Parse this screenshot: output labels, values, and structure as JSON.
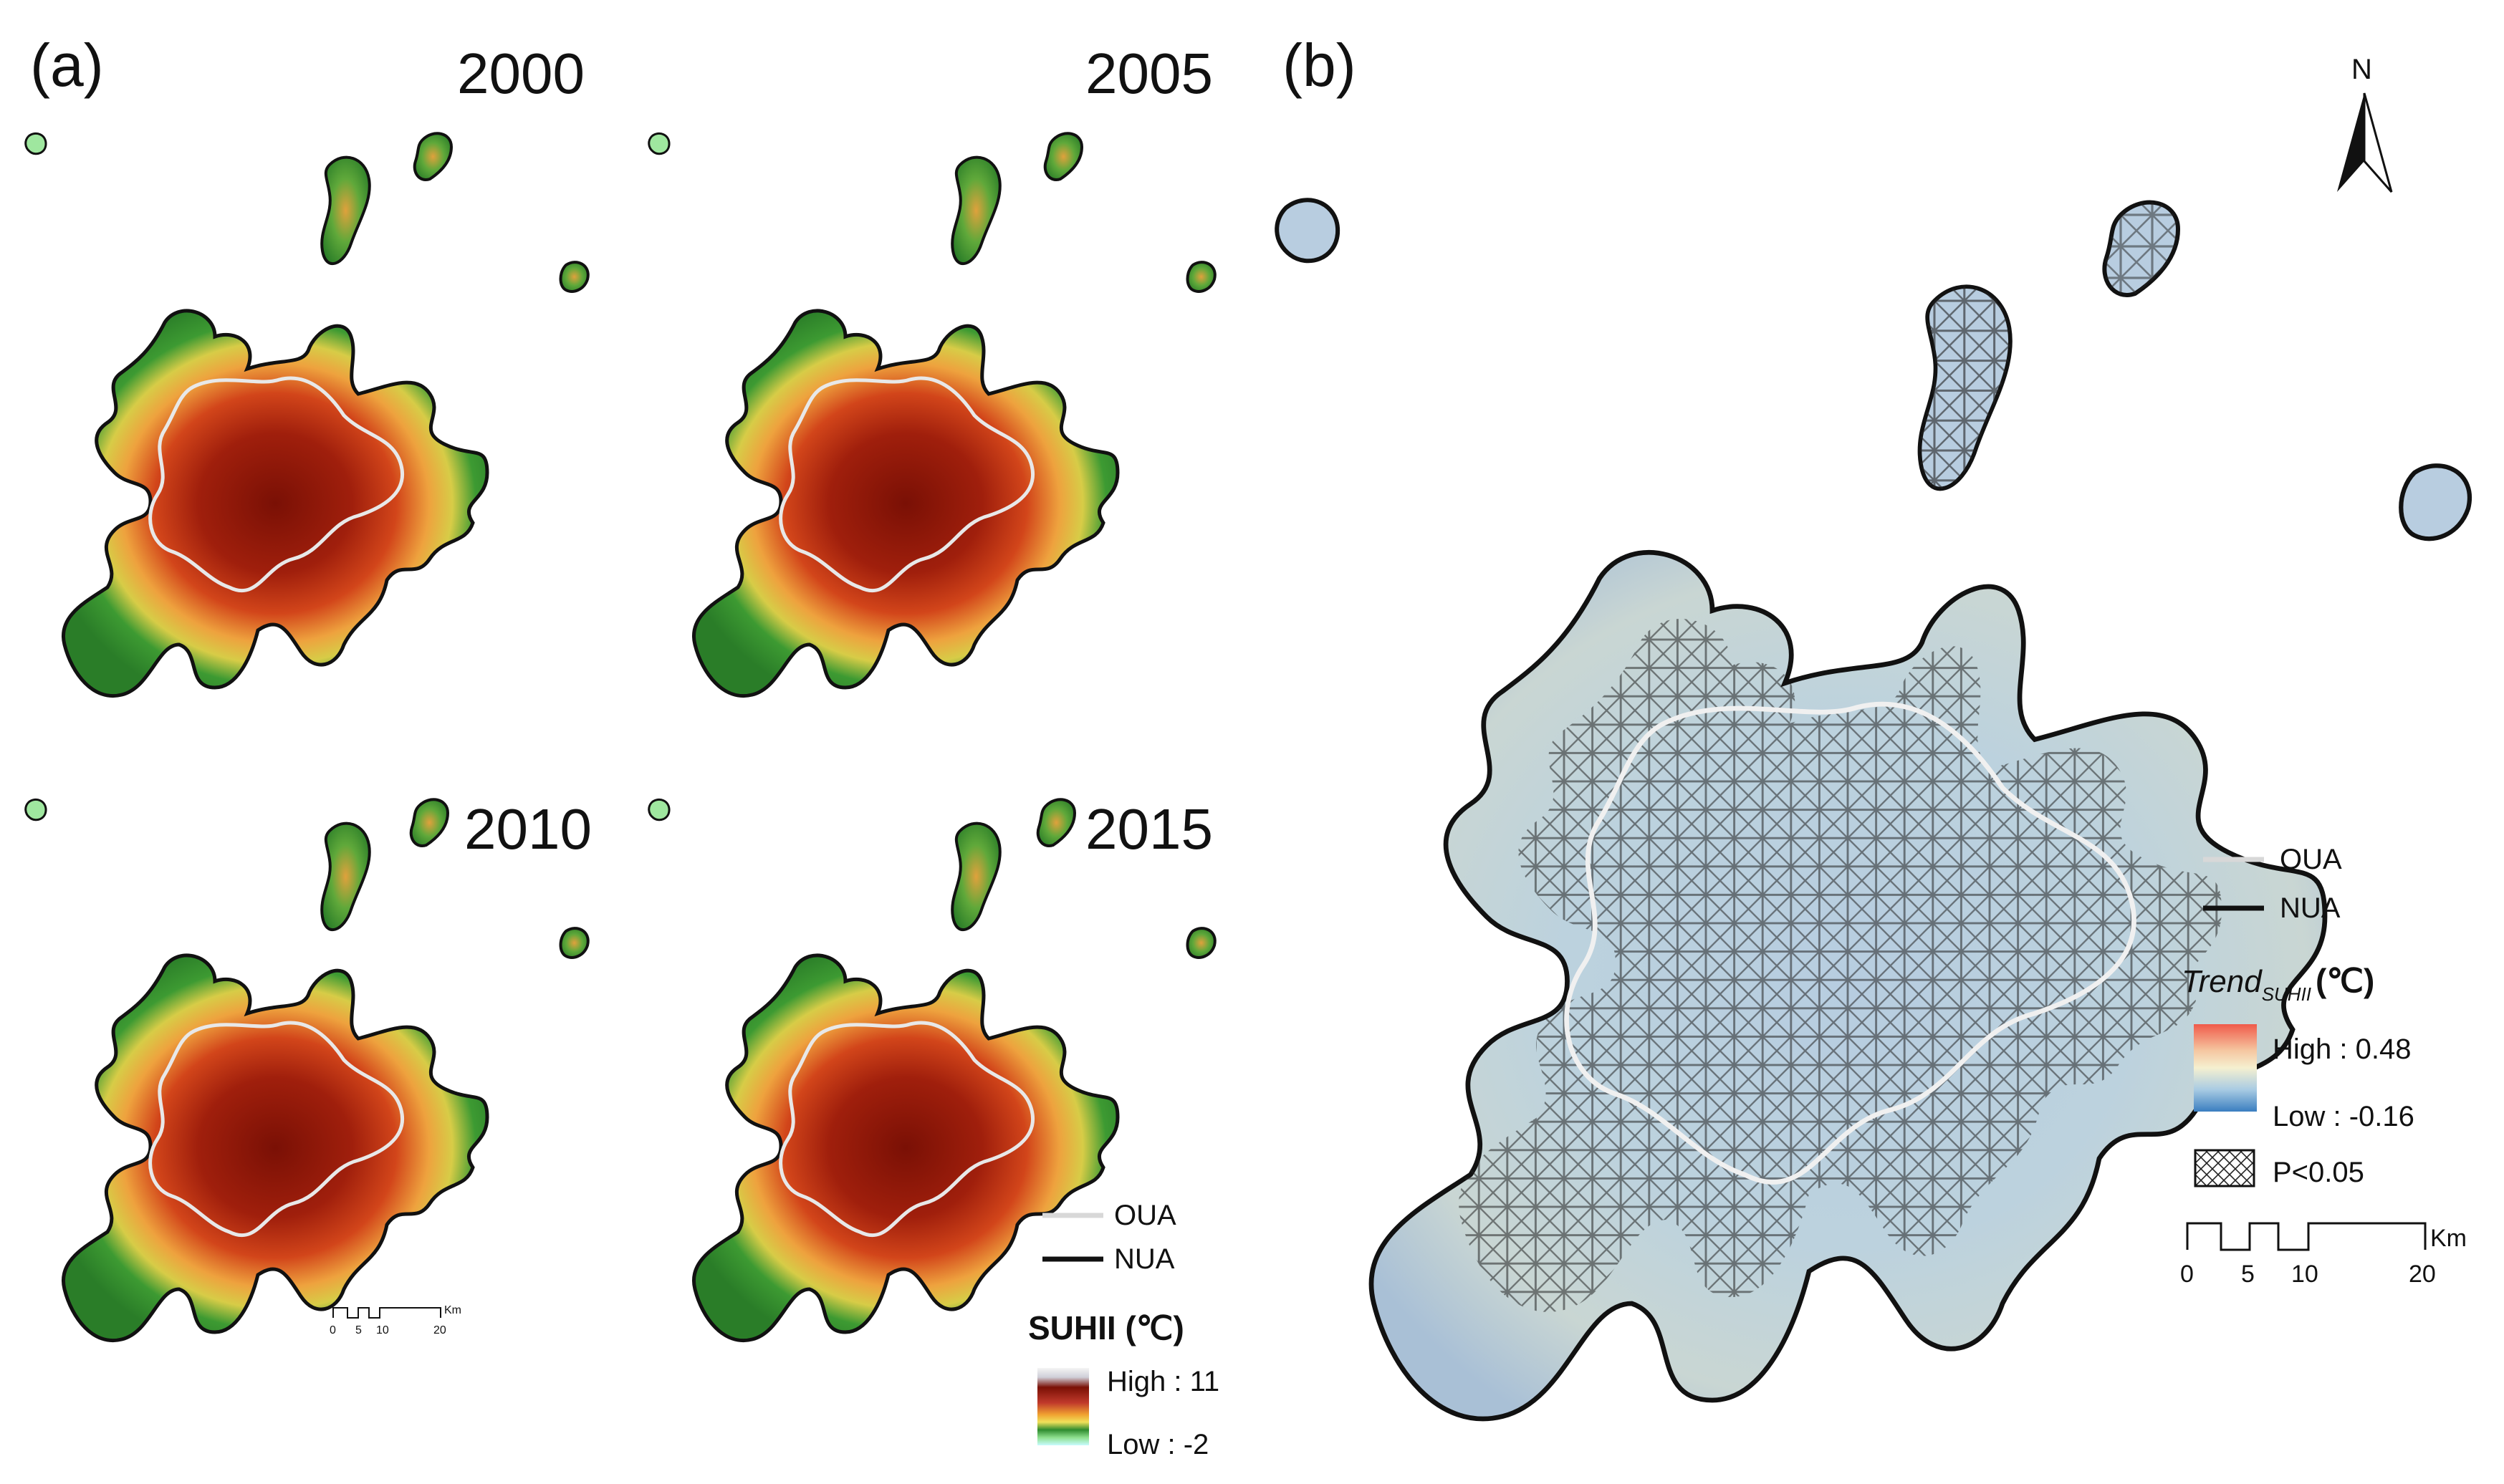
{
  "panel_a": {
    "label": "(a)",
    "maps": [
      {
        "year": "2000"
      },
      {
        "year": "2005"
      },
      {
        "year": "2010"
      },
      {
        "year": "2015"
      }
    ],
    "legend": {
      "oua": "OUA",
      "nua": "NUA",
      "title": "SUHII (℃)",
      "high": "High : 11",
      "low": "Low : -2",
      "colors": [
        "#f2f2f2",
        "#8b1a0a",
        "#c0392b",
        "#e8a23a",
        "#f0e05a",
        "#2e8b2e",
        "#8ee08e",
        "#bff5ff"
      ]
    },
    "scale": {
      "ticks": [
        "0",
        "5",
        "10",
        "20"
      ],
      "unit": "Km"
    }
  },
  "panel_b": {
    "label": "(b)",
    "north": "N",
    "legend": {
      "oua": "OUA",
      "nua": "NUA",
      "title_main": "Trend",
      "title_sub": "SUHII",
      "title_unit": "(℃)",
      "high": "High : 0.48",
      "low": "Low : -0.16",
      "sig": "P<0.05",
      "colors": [
        "#f05a4a",
        "#f5c6a0",
        "#f5f0d0",
        "#b8d4e8",
        "#3a7ec0"
      ]
    },
    "scale": {
      "ticks": [
        "0",
        "5",
        "10",
        "20"
      ],
      "unit": "Km"
    }
  }
}
